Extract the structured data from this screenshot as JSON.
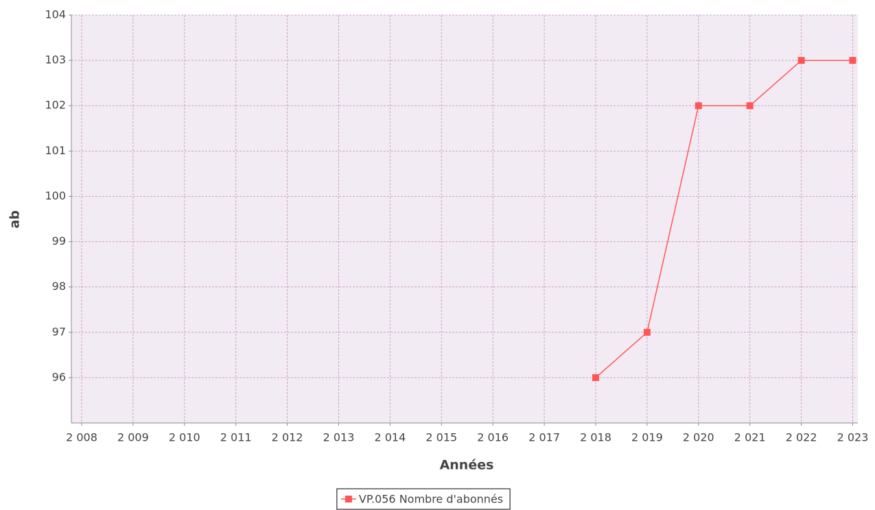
{
  "chart_data": {
    "type": "line",
    "x_label": "Années",
    "y_label": "ab",
    "x": [
      2018,
      2019,
      2020,
      2021,
      2022,
      2023
    ],
    "series": [
      {
        "name": "VP.056 Nombre d'abonnés",
        "color": "#ff5555",
        "values": [
          96,
          97,
          102,
          102,
          103,
          103
        ]
      }
    ],
    "xlim": [
      2007.8,
      2023.1
    ],
    "xticks": [
      {
        "value": 2008,
        "label": "2 008"
      },
      {
        "value": 2009,
        "label": "2 009"
      },
      {
        "value": 2010,
        "label": "2 010"
      },
      {
        "value": 2011,
        "label": "2 011"
      },
      {
        "value": 2012,
        "label": "2 012"
      },
      {
        "value": 2013,
        "label": "2 013"
      },
      {
        "value": 2014,
        "label": "2 014"
      },
      {
        "value": 2015,
        "label": "2 015"
      },
      {
        "value": 2016,
        "label": "2 016"
      },
      {
        "value": 2017,
        "label": "2 017"
      },
      {
        "value": 2018,
        "label": "2 018"
      },
      {
        "value": 2019,
        "label": "2 019"
      },
      {
        "value": 2020,
        "label": "2 020"
      },
      {
        "value": 2021,
        "label": "2 021"
      },
      {
        "value": 2022,
        "label": "2 022"
      },
      {
        "value": 2023,
        "label": "2 023"
      }
    ],
    "ylim": [
      95,
      104
    ],
    "yticks": [
      96,
      97,
      98,
      99,
      100,
      101,
      102,
      103,
      104
    ],
    "grid": true,
    "legend": "bottom"
  }
}
